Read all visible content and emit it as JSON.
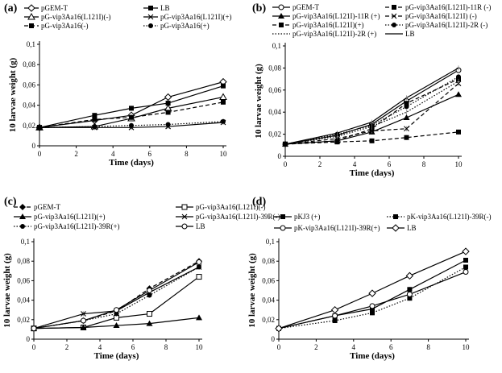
{
  "chart_data": [
    {
      "type": "line",
      "panel_label": "(a)",
      "xlabel": "Time (days)",
      "ylabel": "10 larvae weight (g)",
      "xlim": [
        0,
        10
      ],
      "ylim": [
        0,
        0.1
      ],
      "xticks": [
        0,
        2,
        4,
        6,
        8,
        10
      ],
      "yticks": [
        0,
        0.02,
        0.04,
        0.06,
        0.08,
        0.1
      ],
      "yticklabels": [
        "0",
        "0,02",
        "0,04",
        "0,06",
        "0,08",
        "0,1"
      ],
      "x": [
        0,
        3,
        5,
        7,
        10
      ],
      "series": [
        {
          "name": "pGEM-T",
          "values": [
            0.018,
            0.025,
            0.03,
            0.048,
            0.063
          ],
          "marker": "diamond-open",
          "dash": "solid"
        },
        {
          "name": "LB",
          "values": [
            0.018,
            0.03,
            0.037,
            0.042,
            0.059
          ],
          "marker": "square",
          "dash": "solid"
        },
        {
          "name": "pG-vip3Aa16(L121I)(-)",
          "values": [
            0.018,
            0.019,
            0.027,
            0.037,
            0.048
          ],
          "marker": "triangle-open",
          "dash": "solid"
        },
        {
          "name": "pG-vip3Aa16(L121I)(+)",
          "values": [
            0.018,
            0.018,
            0.018,
            0.019,
            0.023
          ],
          "marker": "x",
          "dash": "solid"
        },
        {
          "name": "pG-vip3Aa16(-)",
          "values": [
            0.018,
            0.026,
            0.028,
            0.033,
            0.043
          ],
          "marker": "square",
          "dash": "dashed"
        },
        {
          "name": "pG-vip3Aa16(+)",
          "values": [
            0.018,
            0.019,
            0.02,
            0.021,
            0.024
          ],
          "marker": "circle",
          "dash": "dotted"
        }
      ]
    },
    {
      "type": "line",
      "panel_label": "(b)",
      "xlabel": "Time (days)",
      "ylabel": "10 larvae weight (g)",
      "xlim": [
        0,
        10
      ],
      "ylim": [
        0,
        0.1
      ],
      "xticks": [
        0,
        2,
        4,
        6,
        8,
        10
      ],
      "yticks": [
        0,
        0.02,
        0.04,
        0.06,
        0.08,
        0.1
      ],
      "yticklabels": [
        "0",
        "0,02",
        "0,04",
        "0,06",
        "0,08",
        "0,1"
      ],
      "x": [
        0,
        3,
        5,
        7,
        10
      ],
      "series": [
        {
          "name": "pGEM-T",
          "values": [
            0.011,
            0.019,
            0.029,
            0.05,
            0.078
          ],
          "marker": "circle-open",
          "dash": "solid"
        },
        {
          "name": "pG-vip3Aa16(L121I)-11R (-)",
          "values": [
            0.011,
            0.014,
            0.025,
            0.048,
            0.07
          ],
          "marker": "square",
          "dash": "dashed"
        },
        {
          "name": "pG-vip3Aa16(L121I)-11R (+)",
          "values": [
            0.011,
            0.014,
            0.022,
            0.035,
            0.056
          ],
          "marker": "triangle",
          "dash": "solid"
        },
        {
          "name": "pG-vip3Aa16(L121I) (-)",
          "values": [
            0.011,
            0.016,
            0.023,
            0.025,
            0.066
          ],
          "marker": "x",
          "dash": "dashed"
        },
        {
          "name": "pG-vip3Aa16(L121I)(+)",
          "values": [
            0.011,
            0.013,
            0.014,
            0.017,
            0.022
          ],
          "marker": "square",
          "dash": "dashed"
        },
        {
          "name": "pG-vip3Aa16(L121I)-2R (-)",
          "values": [
            0.011,
            0.02,
            0.028,
            0.045,
            0.072
          ],
          "marker": "circle",
          "dash": "dotted"
        },
        {
          "name": "pG-vip3Aa16(L121I)-2R (+)",
          "values": [
            0.011,
            0.018,
            0.027,
            0.04,
            0.068
          ],
          "marker": "none",
          "dash": "dotted"
        },
        {
          "name": "LB",
          "values": [
            0.011,
            0.021,
            0.031,
            0.053,
            0.08
          ],
          "marker": "none",
          "dash": "solid"
        }
      ]
    },
    {
      "type": "line",
      "panel_label": "(c)",
      "xlabel": "Time (days)",
      "ylabel": "10 larvae weight (g)",
      "xlim": [
        0,
        10
      ],
      "ylim": [
        0,
        0.1
      ],
      "xticks": [
        0,
        2,
        4,
        6,
        8,
        10
      ],
      "yticks": [
        0,
        0.02,
        0.04,
        0.06,
        0.08,
        0.1
      ],
      "yticklabels": [
        "0",
        "0,02",
        "0,04",
        "0,06",
        "0,08",
        "0,1"
      ],
      "x": [
        0,
        3,
        5,
        7,
        10
      ],
      "series": [
        {
          "name": "pGEM-T",
          "values": [
            0.011,
            0.019,
            0.029,
            0.052,
            0.08
          ],
          "marker": "diamond",
          "dash": "dashed"
        },
        {
          "name": "pG-vip3Aa16(L121I)(-)",
          "values": [
            0.011,
            0.012,
            0.022,
            0.026,
            0.064
          ],
          "marker": "square-open",
          "dash": "solid"
        },
        {
          "name": "pG-vip3Aa16(L121I)(+)",
          "values": [
            0.011,
            0.012,
            0.014,
            0.016,
            0.022
          ],
          "marker": "triangle",
          "dash": "solid"
        },
        {
          "name": "pG-vip3Aa16(L121I)-39R(-)",
          "values": [
            0.011,
            0.026,
            0.029,
            0.048,
            0.074
          ],
          "marker": "x",
          "dash": "solid"
        },
        {
          "name": "pG-vip3Aa16(L121I)-39R(+)",
          "values": [
            0.011,
            0.019,
            0.026,
            0.045,
            0.074
          ],
          "marker": "circle",
          "dash": "dotted"
        },
        {
          "name": "LB",
          "values": [
            0.011,
            0.019,
            0.03,
            0.05,
            0.079
          ],
          "marker": "circle-open",
          "dash": "solid"
        }
      ]
    },
    {
      "type": "line",
      "panel_label": "(d)",
      "xlabel": "Time (days)",
      "ylabel": "10 larvae weight (g)",
      "xlim": [
        0,
        10
      ],
      "ylim": [
        0,
        0.1
      ],
      "xticks": [
        0,
        2,
        4,
        6,
        8,
        10
      ],
      "yticks": [
        0,
        0.02,
        0.04,
        0.06,
        0.08,
        0.1
      ],
      "yticklabels": [
        "0",
        "0,02",
        "0,04",
        "0,06",
        "0,08",
        "0,1"
      ],
      "x": [
        0,
        3,
        5,
        7,
        10
      ],
      "series": [
        {
          "name": "pKJ3 (+)",
          "values": [
            0.011,
            0.024,
            0.031,
            0.051,
            0.081
          ],
          "marker": "square",
          "dash": "solid"
        },
        {
          "name": "pK-vip3Aa16(L121I)-39R(-)",
          "values": [
            0.011,
            0.019,
            0.027,
            0.042,
            0.074
          ],
          "marker": "square",
          "dash": "dotted"
        },
        {
          "name": "pK-vip3Aa16(L121I)-39R(+)",
          "values": [
            0.011,
            0.024,
            0.034,
            0.046,
            0.069
          ],
          "marker": "circle-open",
          "dash": "solid"
        },
        {
          "name": "LB",
          "values": [
            0.011,
            0.03,
            0.047,
            0.065,
            0.09
          ],
          "marker": "diamond-open",
          "dash": "solid"
        }
      ]
    }
  ]
}
